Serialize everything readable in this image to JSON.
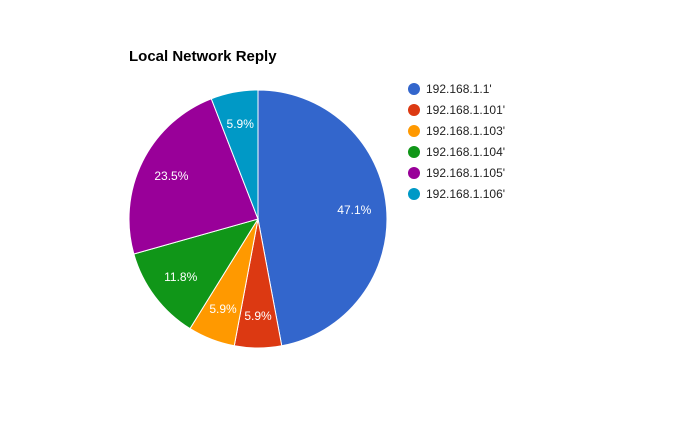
{
  "chart_data": {
    "type": "pie",
    "title": "Local Network Reply",
    "legend_position": "right",
    "slices": [
      {
        "label": "192.168.1.1'",
        "value": 47.1,
        "display": "47.1%",
        "color": "#3366cc"
      },
      {
        "label": "192.168.1.101'",
        "value": 5.9,
        "display": "5.9%",
        "color": "#dc3912"
      },
      {
        "label": "192.168.1.103'",
        "value": 5.9,
        "display": "5.9%",
        "color": "#ff9900"
      },
      {
        "label": "192.168.1.104'",
        "value": 11.8,
        "display": "11.8%",
        "color": "#109618"
      },
      {
        "label": "192.168.1.105'",
        "value": 23.5,
        "display": "23.5%",
        "color": "#990099"
      },
      {
        "label": "192.168.1.106'",
        "value": 5.9,
        "display": "5.9%",
        "color": "#0099c6"
      }
    ]
  }
}
